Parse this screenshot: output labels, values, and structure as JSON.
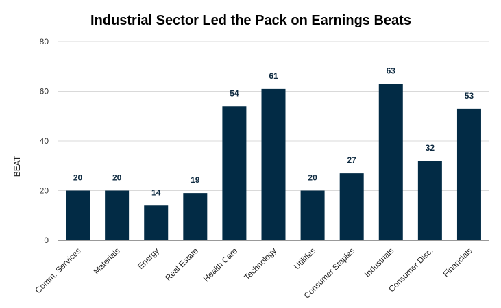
{
  "chart_data": {
    "type": "bar",
    "title": "Industrial Sector Led the Pack on Earnings Beats",
    "xlabel": "",
    "ylabel": "BEAT",
    "ylim": [
      0,
      80
    ],
    "yticks": [
      0,
      20,
      40,
      60,
      80
    ],
    "categories": [
      "Comm. Services",
      "Materials",
      "Energy",
      "Real Estate",
      "Health Care",
      "Technology",
      "Utilities",
      "Consumer Staples",
      "Industrials",
      "Consumer Disc.",
      "Financials"
    ],
    "values": [
      20,
      20,
      14,
      19,
      54,
      61,
      20,
      27,
      63,
      32,
      53
    ],
    "data_labels": [
      "20",
      "20",
      "14",
      "19",
      "54",
      "61",
      "20",
      "27",
      "63",
      "32",
      "53"
    ],
    "bar_color": "#022b45",
    "grid": true,
    "legend": "none"
  }
}
